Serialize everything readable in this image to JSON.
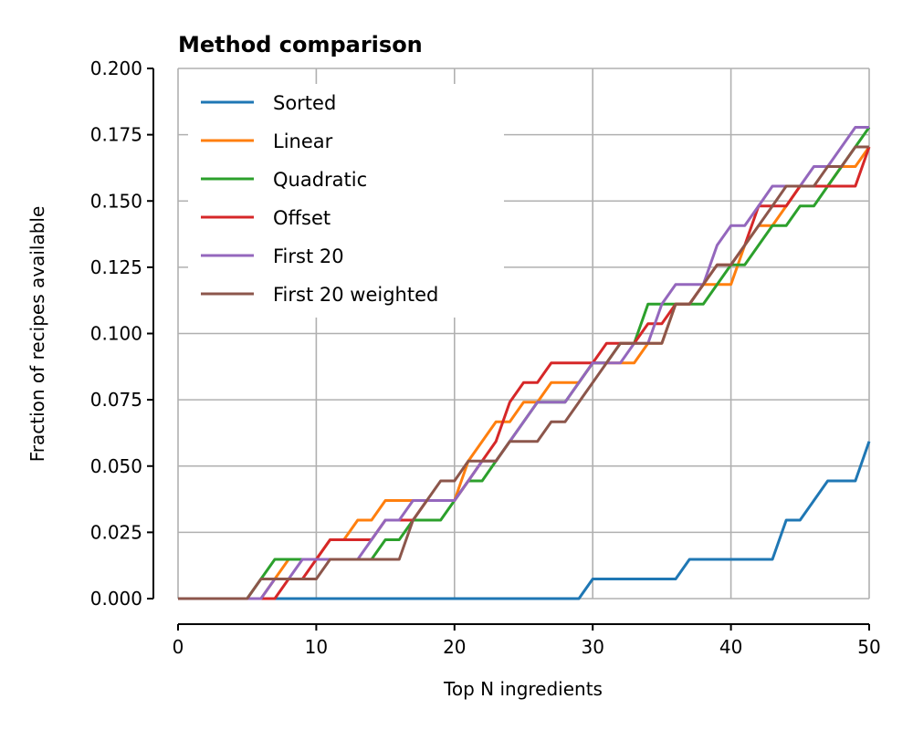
{
  "chart_data": {
    "type": "line",
    "title": "Method comparison",
    "xlabel": "Top N ingredients",
    "ylabel": "Fraction of recipes available",
    "xlim": [
      0,
      50
    ],
    "ylim": [
      0,
      0.2
    ],
    "xticks": [
      "0",
      "10",
      "20",
      "30",
      "40",
      "50"
    ],
    "yticks": [
      "0.000",
      "0.025",
      "0.050",
      "0.075",
      "0.100",
      "0.125",
      "0.150",
      "0.175",
      "0.200"
    ],
    "grid": true,
    "legend_position": "upper-left",
    "x": [
      0,
      1,
      2,
      3,
      4,
      5,
      6,
      7,
      8,
      9,
      10,
      11,
      12,
      13,
      14,
      15,
      16,
      17,
      18,
      19,
      20,
      21,
      22,
      23,
      24,
      25,
      26,
      27,
      28,
      29,
      30,
      31,
      32,
      33,
      34,
      35,
      36,
      37,
      38,
      39,
      40,
      41,
      42,
      43,
      44,
      45,
      46,
      47,
      48,
      49,
      50
    ],
    "series": [
      {
        "name": "Sorted",
        "color": "#1f77b4",
        "values": [
          0,
          0,
          0,
          0,
          0,
          0,
          0,
          0,
          0,
          0,
          0,
          0,
          0,
          0,
          0,
          0,
          0,
          0,
          0,
          0,
          0,
          0,
          0,
          0,
          0,
          0,
          0,
          0,
          0,
          0,
          0.0074,
          0.0074,
          0.0074,
          0.0074,
          0.0074,
          0.0074,
          0.0074,
          0.0148,
          0.0148,
          0.0148,
          0.0148,
          0.0148,
          0.0148,
          0.0148,
          0.0296,
          0.0296,
          0.037,
          0.0444,
          0.0444,
          0.0444,
          0.0593
        ]
      },
      {
        "name": "Linear",
        "color": "#ff7f0e",
        "values": [
          0,
          0,
          0,
          0,
          0,
          0,
          0,
          0.0074,
          0.0148,
          0.0148,
          0.0148,
          0.0222,
          0.0222,
          0.0296,
          0.0296,
          0.037,
          0.037,
          0.037,
          0.037,
          0.037,
          0.037,
          0.0519,
          0.0593,
          0.0667,
          0.0667,
          0.0741,
          0.0741,
          0.0815,
          0.0815,
          0.0815,
          0.0889,
          0.0889,
          0.0889,
          0.0889,
          0.0963,
          0.0963,
          0.1111,
          0.1111,
          0.1185,
          0.1185,
          0.1185,
          0.1333,
          0.1407,
          0.1407,
          0.1481,
          0.1556,
          0.1556,
          0.1556,
          0.163,
          0.163,
          0.1704
        ]
      },
      {
        "name": "Quadratic",
        "color": "#2ca02c",
        "values": [
          0,
          0,
          0,
          0,
          0,
          0,
          0.0074,
          0.0148,
          0.0148,
          0.0148,
          0.0148,
          0.0148,
          0.0148,
          0.0148,
          0.0148,
          0.0222,
          0.0222,
          0.0296,
          0.0296,
          0.0296,
          0.037,
          0.0444,
          0.0444,
          0.0519,
          0.0593,
          0.0667,
          0.0741,
          0.0741,
          0.0741,
          0.0815,
          0.0889,
          0.0889,
          0.0963,
          0.0963,
          0.1111,
          0.1111,
          0.1111,
          0.1111,
          0.1111,
          0.1185,
          0.1259,
          0.1259,
          0.1333,
          0.1407,
          0.1407,
          0.1481,
          0.1481,
          0.1556,
          0.163,
          0.1704,
          0.1778
        ]
      },
      {
        "name": "Offset",
        "color": "#d62728",
        "values": [
          0,
          0,
          0,
          0,
          0,
          0,
          0,
          0,
          0.0074,
          0.0074,
          0.0148,
          0.0222,
          0.0222,
          0.0222,
          0.0222,
          0.0296,
          0.0296,
          0.0296,
          0.037,
          0.037,
          0.037,
          0.0444,
          0.0519,
          0.0593,
          0.0741,
          0.0815,
          0.0815,
          0.0889,
          0.0889,
          0.0889,
          0.0889,
          0.0963,
          0.0963,
          0.0963,
          0.1037,
          0.1037,
          0.1111,
          0.1111,
          0.1185,
          0.1259,
          0.1259,
          0.1333,
          0.1481,
          0.1481,
          0.1481,
          0.1556,
          0.1556,
          0.1556,
          0.1556,
          0.1556,
          0.1704
        ]
      },
      {
        "name": "First 20",
        "color": "#9467bd",
        "values": [
          0,
          0,
          0,
          0,
          0,
          0,
          0,
          0.0074,
          0.0074,
          0.0148,
          0.0148,
          0.0148,
          0.0148,
          0.0148,
          0.0222,
          0.0296,
          0.0296,
          0.037,
          0.037,
          0.037,
          0.037,
          0.0444,
          0.0519,
          0.0519,
          0.0593,
          0.0667,
          0.0741,
          0.0741,
          0.0741,
          0.0815,
          0.0889,
          0.0889,
          0.0889,
          0.0963,
          0.0963,
          0.1111,
          0.1185,
          0.1185,
          0.1185,
          0.1333,
          0.1407,
          0.1407,
          0.1481,
          0.1556,
          0.1556,
          0.1556,
          0.163,
          0.163,
          0.1704,
          0.1778,
          0.1778
        ]
      },
      {
        "name": "First 20 weighted",
        "color": "#8c564b",
        "values": [
          0,
          0,
          0,
          0,
          0,
          0,
          0.0074,
          0.0074,
          0.0074,
          0.0074,
          0.0074,
          0.0148,
          0.0148,
          0.0148,
          0.0148,
          0.0148,
          0.0148,
          0.0296,
          0.037,
          0.0444,
          0.0444,
          0.0519,
          0.0519,
          0.0519,
          0.0593,
          0.0593,
          0.0593,
          0.0667,
          0.0667,
          0.0741,
          0.0815,
          0.0889,
          0.0963,
          0.0963,
          0.0963,
          0.0963,
          0.1111,
          0.1111,
          0.1185,
          0.1259,
          0.1259,
          0.1333,
          0.1407,
          0.1481,
          0.1556,
          0.1556,
          0.1556,
          0.163,
          0.163,
          0.1704,
          0.1704
        ]
      }
    ]
  }
}
